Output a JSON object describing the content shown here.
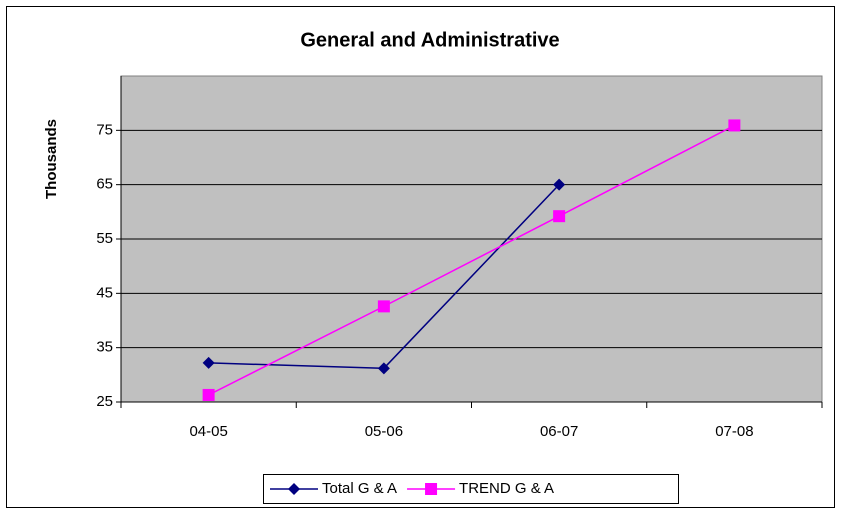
{
  "chart_data": {
    "type": "line",
    "title": "General and Administrative",
    "y_label": "Thousands",
    "categories": [
      "04-05",
      "05-06",
      "06-07",
      "07-08"
    ],
    "series": [
      {
        "name": "Total G & A",
        "color": "#000080",
        "marker": "diamond",
        "values": [
          32.2,
          31.2,
          65,
          null
        ]
      },
      {
        "name": "TREND G & A",
        "color": "#ff00ff",
        "marker": "square",
        "values": [
          26.3,
          42.6,
          59.2,
          75.9
        ]
      }
    ],
    "ylim": [
      25,
      85
    ],
    "yticks": [
      25,
      35,
      45,
      55,
      65,
      75
    ],
    "grid": true,
    "legend": "bottom"
  }
}
